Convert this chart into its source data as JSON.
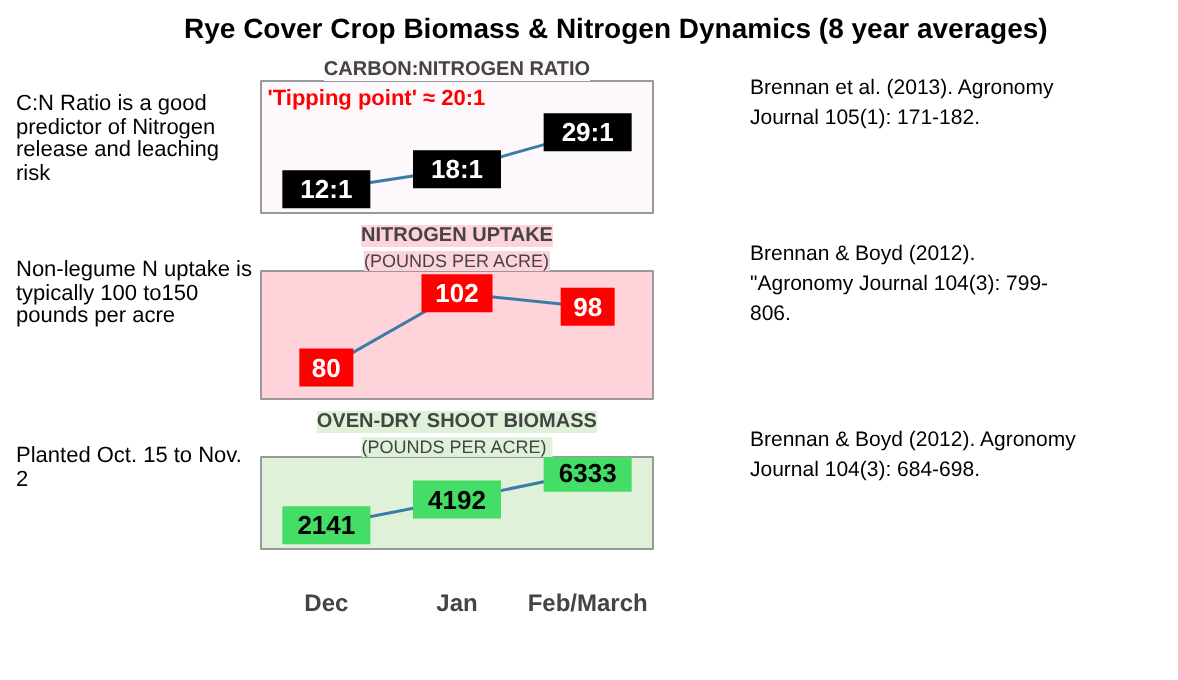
{
  "chart_data": [
    {
      "type": "line",
      "title": "CARBON:NITROGEN RATIO",
      "categories": [
        null,
        null,
        null
      ],
      "series": [
        {
          "color": "#3a7ca5",
          "values": [
            12,
            18,
            29
          ],
          "value_labels": [
            "12:1",
            "18:1",
            "29:1"
          ]
        }
      ],
      "colors": [
        "#000000",
        "#000000",
        "#000000"
      ],
      "tick_labels": false,
      "marker": "square",
      "annotations": [
        "Rye Cover Crop Biomass & Nitrogen Dynamics (8 year averages)",
        "'Tipping point' ≈ 20:1",
        "C:N Ratio is a good predictor of Nitrogen release and leaching risk",
        "Brennan et al. (2013). Agronomy Journal 105(1): 171-182."
      ]
    },
    {
      "type": "line",
      "title": "NITROGEN UPTAKE",
      "subtitle": "(POUNDS PER ACRE)",
      "categories": [
        null,
        null,
        null
      ],
      "series": [
        {
          "color": "#3a7ca5",
          "values": [
            80,
            102,
            98
          ]
        }
      ],
      "colors": [
        "#ff0000",
        "#ff0000",
        "#ff0000"
      ],
      "tick_labels": false,
      "marker": "square",
      "data_labels": true,
      "annotations": [
        "Non-legume N uptake is typically 100 to150 pounds per acre",
        "Brennan & Boyd (2012). \"Agronomy Journal 104(3): 799-806."
      ]
    },
    {
      "type": "line",
      "title": "OVEN-DRY SHOOT BIOMASS",
      "subtitle": "(POUNDS  PER ACRE)",
      "categories": [
        "Dec",
        "Jan",
        "Feb/March"
      ],
      "series": [
        {
          "color": "#3a7ca5",
          "values": [
            2141,
            4192,
            6333
          ]
        }
      ],
      "colors": [
        "#44dd66",
        "#44dd66",
        "#44dd66"
      ],
      "tick_labels": "x",
      "marker": "square",
      "data_labels": true,
      "annotations": [
        "Planted Oct. 15 to Nov. 2",
        "Brennan & Boyd (2012). Agronomy Journal 104(3): 684-698."
      ]
    }
  ]
}
